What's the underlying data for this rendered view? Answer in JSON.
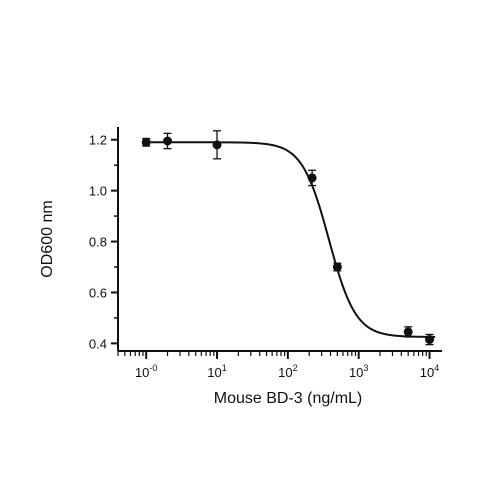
{
  "chart_data": {
    "type": "scatter",
    "title": "",
    "xlabel": "Mouse BD-3 (ng/mL)",
    "ylabel": "OD600 nm",
    "x_scale": "log",
    "xlim": [
      0.4,
      15000
    ],
    "ylim": [
      0.37,
      1.25
    ],
    "x_ticks": [
      {
        "value": 1,
        "base": "10",
        "exp": "-0"
      },
      {
        "value": 10,
        "base": "10",
        "exp": "1"
      },
      {
        "value": 100,
        "base": "10",
        "exp": "2"
      },
      {
        "value": 1000,
        "base": "10",
        "exp": "3"
      },
      {
        "value": 10000,
        "base": "10",
        "exp": "4"
      }
    ],
    "y_ticks": [
      {
        "value": 0.4,
        "label": "0.4"
      },
      {
        "value": 0.6,
        "label": "0.6"
      },
      {
        "value": 0.8,
        "label": "0.8"
      },
      {
        "value": 1.0,
        "label": "1.0"
      },
      {
        "value": 1.2,
        "label": "1.2"
      }
    ],
    "grid": false,
    "points": [
      {
        "x": 1,
        "y": 1.19,
        "err": 0.015
      },
      {
        "x": 2,
        "y": 1.195,
        "err": 0.03
      },
      {
        "x": 10,
        "y": 1.18,
        "err": 0.055
      },
      {
        "x": 220,
        "y": 1.05,
        "err": 0.03
      },
      {
        "x": 500,
        "y": 0.7,
        "err": 0.015
      },
      {
        "x": 5000,
        "y": 0.445,
        "err": 0.02
      },
      {
        "x": 10000,
        "y": 0.415,
        "err": 0.02
      }
    ],
    "fit": {
      "type": "4PL",
      "top": 1.19,
      "bottom": 0.425,
      "ec50": 380,
      "hill": 2.3
    },
    "colors": {
      "points": "#111111",
      "line": "#111111"
    }
  }
}
